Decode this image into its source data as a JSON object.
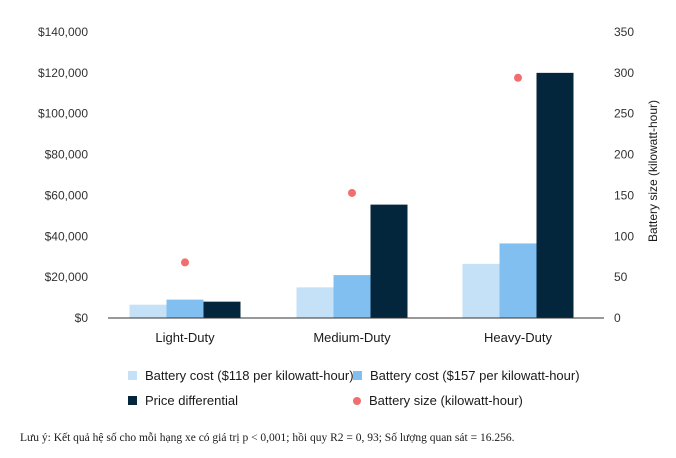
{
  "chart_data": {
    "type": "bar",
    "categories": [
      "Light-Duty",
      "Medium-Duty",
      "Heavy-Duty"
    ],
    "y_left": {
      "range": [
        0,
        140000
      ],
      "ticks": [
        "$0",
        "$20,000",
        "$40,000",
        "$60,000",
        "$80,000",
        "$100,000",
        "$120,000",
        "$140,000"
      ],
      "tick_values": [
        0,
        20000,
        40000,
        60000,
        80000,
        100000,
        120000,
        140000
      ]
    },
    "y_right": {
      "label": "Battery size (kilowatt-hour)",
      "range": [
        0,
        350
      ],
      "ticks": [
        "0",
        "50",
        "100",
        "150",
        "200",
        "250",
        "300",
        "350"
      ],
      "tick_values": [
        0,
        50,
        100,
        150,
        200,
        250,
        300,
        350
      ]
    },
    "series": [
      {
        "name": "Battery cost ($118 per kilowatt-hour)",
        "type": "bar",
        "axis": "left",
        "color": "#c5e1f8",
        "values": [
          6500,
          15000,
          26500
        ]
      },
      {
        "name": "Battery cost ($157 per kilowatt-hour)",
        "type": "bar",
        "axis": "left",
        "color": "#80bff0",
        "values": [
          9000,
          21000,
          36500
        ]
      },
      {
        "name": "Price differential",
        "type": "bar",
        "axis": "left",
        "color": "#03263d",
        "values": [
          8000,
          55500,
          120000
        ]
      },
      {
        "name": "Battery size (kilowatt-hour)",
        "type": "scatter",
        "axis": "right",
        "color": "#f26d6d",
        "values": [
          68,
          153,
          294
        ]
      }
    ],
    "legend_position": "bottom",
    "grid": false
  },
  "note": "Lưu ý: Kết quả hệ số cho mỗi hạng xe có giá trị p < 0,001; hồi quy R2 = 0, 93; Số lượng quan sát = 16.256."
}
